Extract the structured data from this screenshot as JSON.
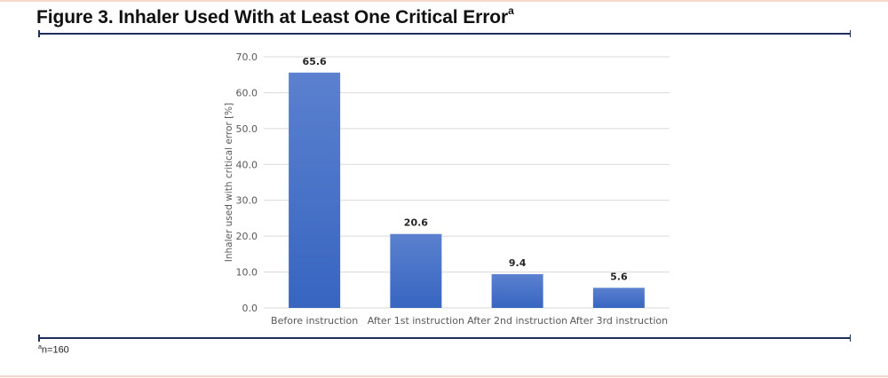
{
  "figure": {
    "title": "Figure 3. Inhaler Used With at Least One Critical Error",
    "title_superscript": "a",
    "footnote_marker": "a",
    "footnote_text": "n=160"
  },
  "colors": {
    "bar_top": "#5b81cf",
    "bar_bottom": "#3765c0",
    "rule": "#1f2f5c",
    "page_border": "#f6d8cd",
    "gridline": "#d9d9d9"
  },
  "chart_data": {
    "type": "bar",
    "categories": [
      "Before instruction",
      "After 1st instruction",
      "After 2nd instruction",
      "After 3rd instruction"
    ],
    "values": [
      65.6,
      20.6,
      9.4,
      5.6
    ],
    "data_labels": [
      "65.6",
      "20.6",
      "9.4",
      "5.6"
    ],
    "ylabel": "Inhaler used with critical error [%]",
    "xlabel": "",
    "ylim": [
      0,
      70
    ],
    "yticks": [
      0,
      10,
      20,
      30,
      40,
      50,
      60,
      70
    ],
    "ytick_labels": [
      "0.0",
      "10.0",
      "20.0",
      "30.0",
      "40.0",
      "50.0",
      "60.0",
      "70.0"
    ],
    "grid": true,
    "legend": "none"
  }
}
